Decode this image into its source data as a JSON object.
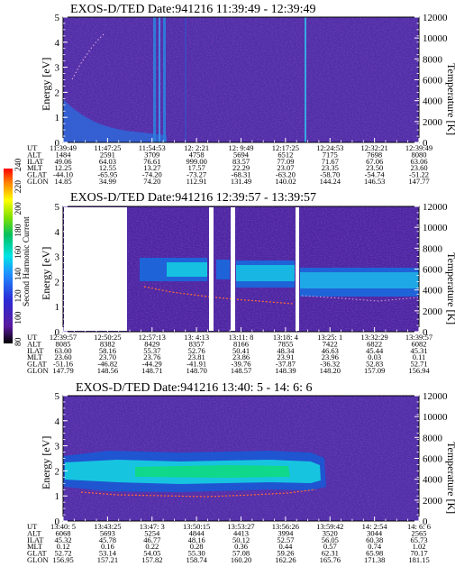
{
  "chart_data": [
    {
      "type": "heatmap",
      "title": "EXOS-D/TED   Date:941216  11:39:49 - 12:39:49",
      "ylabel": "Energy [eV]",
      "y2label": "Temperature [K]",
      "ylim": [
        0,
        5
      ],
      "y2lim": [
        0,
        12000
      ],
      "yticks": [
        "0",
        "1",
        "2",
        "3",
        "4",
        "5"
      ],
      "y2ticks": [
        "0",
        "2000",
        "4000",
        "6000",
        "8000",
        "10000",
        "12000"
      ],
      "header_labels": [
        "UT",
        "ALT",
        "ILAT",
        "MLT",
        "GLAT",
        "GLON"
      ],
      "columns": [
        [
          "11:39:49",
          "1484",
          "49.06",
          "12.25",
          "-44.10",
          "14.85"
        ],
        [
          "11:47:25",
          "2591",
          "64.03",
          "12.55",
          "-65.95",
          "34.99"
        ],
        [
          "11:54:53",
          "3709",
          "76.61",
          "13.27",
          "-74.20",
          "74.20"
        ],
        [
          "12: 2:21",
          "4758",
          "999.00",
          "17.57",
          "-73.27",
          "112.91"
        ],
        [
          "12: 9:49",
          "5694",
          "83.57",
          "22.29",
          "-68.31",
          "131.49"
        ],
        [
          "12:17:25",
          "6512",
          "77.09",
          "23.07",
          "-63.20",
          "140.02"
        ],
        [
          "12:24:53",
          "7175",
          "71.67",
          "23.35",
          "-58.70",
          "144.24"
        ],
        [
          "12:32:21",
          "7698",
          "67.06",
          "23.50",
          "-54.74",
          "146.53"
        ],
        [
          "12:39:49",
          "8080",
          "63.06",
          "23.60",
          "-51.22",
          "147.77"
        ]
      ]
    },
    {
      "type": "heatmap",
      "title": "EXOS-D/TED   Date:941216  12:39:57 - 13:39:57",
      "ylabel": "Energy [eV]",
      "y2label": "Temperature [K]",
      "ylim": [
        0,
        5
      ],
      "y2lim": [
        0,
        12000
      ],
      "yticks": [
        "0",
        "1",
        "2",
        "3",
        "4",
        "5"
      ],
      "y2ticks": [
        "0",
        "2000",
        "4000",
        "6000",
        "8000",
        "10000",
        "12000"
      ],
      "colorbar": {
        "label": "Second Harmonic Current",
        "ticks": [
          "80",
          "100",
          "120",
          "140",
          "160",
          "180",
          "200",
          "220",
          "240"
        ],
        "range": [
          80,
          240
        ]
      },
      "header_labels": [
        "UT",
        "ALT",
        "ILAT",
        "MLT",
        "GLAT",
        "GLON"
      ],
      "columns": [
        [
          "12:39:57",
          "8085",
          "63.00",
          "23.60",
          "-51.16",
          "147.79"
        ],
        [
          "12:50:25",
          "8382",
          "58.16",
          "23.70",
          "-46.82",
          "148.56"
        ],
        [
          "12:57:13",
          "8429",
          "55.37",
          "23.76",
          "-44.29",
          "148.71"
        ],
        [
          "13: 4:13",
          "8357",
          "52.76",
          "23.81",
          "-41.91",
          "148.70"
        ],
        [
          "13:11: 8",
          "8166",
          "50.41",
          "23.86",
          "-39.76",
          "148.57"
        ],
        [
          "13:18: 4",
          "7855",
          "48.34",
          "23.91",
          "-37.87",
          "148.39"
        ],
        [
          "13:25: 1",
          "7422",
          "46.63",
          "23.96",
          "-36.32",
          "148.20"
        ],
        [
          "13:32:29",
          "6822",
          "45.44",
          "0.03",
          "52.83",
          "157.09"
        ],
        [
          "13:39:57",
          "6082",
          "45.31",
          "0.11",
          "52.71",
          "156.94"
        ]
      ]
    },
    {
      "type": "heatmap",
      "title": "EXOS-D/TED   Date:941216  13:40: 5 - 14: 6: 6",
      "ylabel": "Energy [eV]",
      "y2label": "Temperature [K]",
      "ylim": [
        0,
        5
      ],
      "y2lim": [
        0,
        12000
      ],
      "yticks": [
        "0",
        "1",
        "2",
        "3",
        "4",
        "5"
      ],
      "y2ticks": [
        "0",
        "2000",
        "4000",
        "6000",
        "8000",
        "10000",
        "12000"
      ],
      "header_labels": [
        "UT",
        "ALT",
        "ILAT",
        "MLT",
        "GLAT",
        "GLON"
      ],
      "columns": [
        [
          "13:40: 5",
          "6068",
          "45.32",
          "0.12",
          "52.72",
          "156.95"
        ],
        [
          "13:43:25",
          "5693",
          "45.78",
          "0.16",
          "53.14",
          "157.21"
        ],
        [
          "13:47: 3",
          "5254",
          "46.77",
          "0.22",
          "54.05",
          "157.82"
        ],
        [
          "13:50:15",
          "4844",
          "48.16",
          "0.28",
          "55.30",
          "158.74"
        ],
        [
          "13:53:27",
          "4413",
          "50.12",
          "0.36",
          "57.08",
          "160.20"
        ],
        [
          "13:56:26",
          "3994",
          "52.57",
          "0.44",
          "59.26",
          "162.26"
        ],
        [
          "13:59:42",
          "3520",
          "56.05",
          "0.57",
          "62.31",
          "165.76"
        ],
        [
          "14: 2:54",
          "3044",
          "60.38",
          "0.74",
          "65.98",
          "171.38"
        ],
        [
          "14: 6: 6",
          "2565",
          "65.73",
          "1.02",
          "70.17",
          "181.15"
        ]
      ]
    }
  ]
}
